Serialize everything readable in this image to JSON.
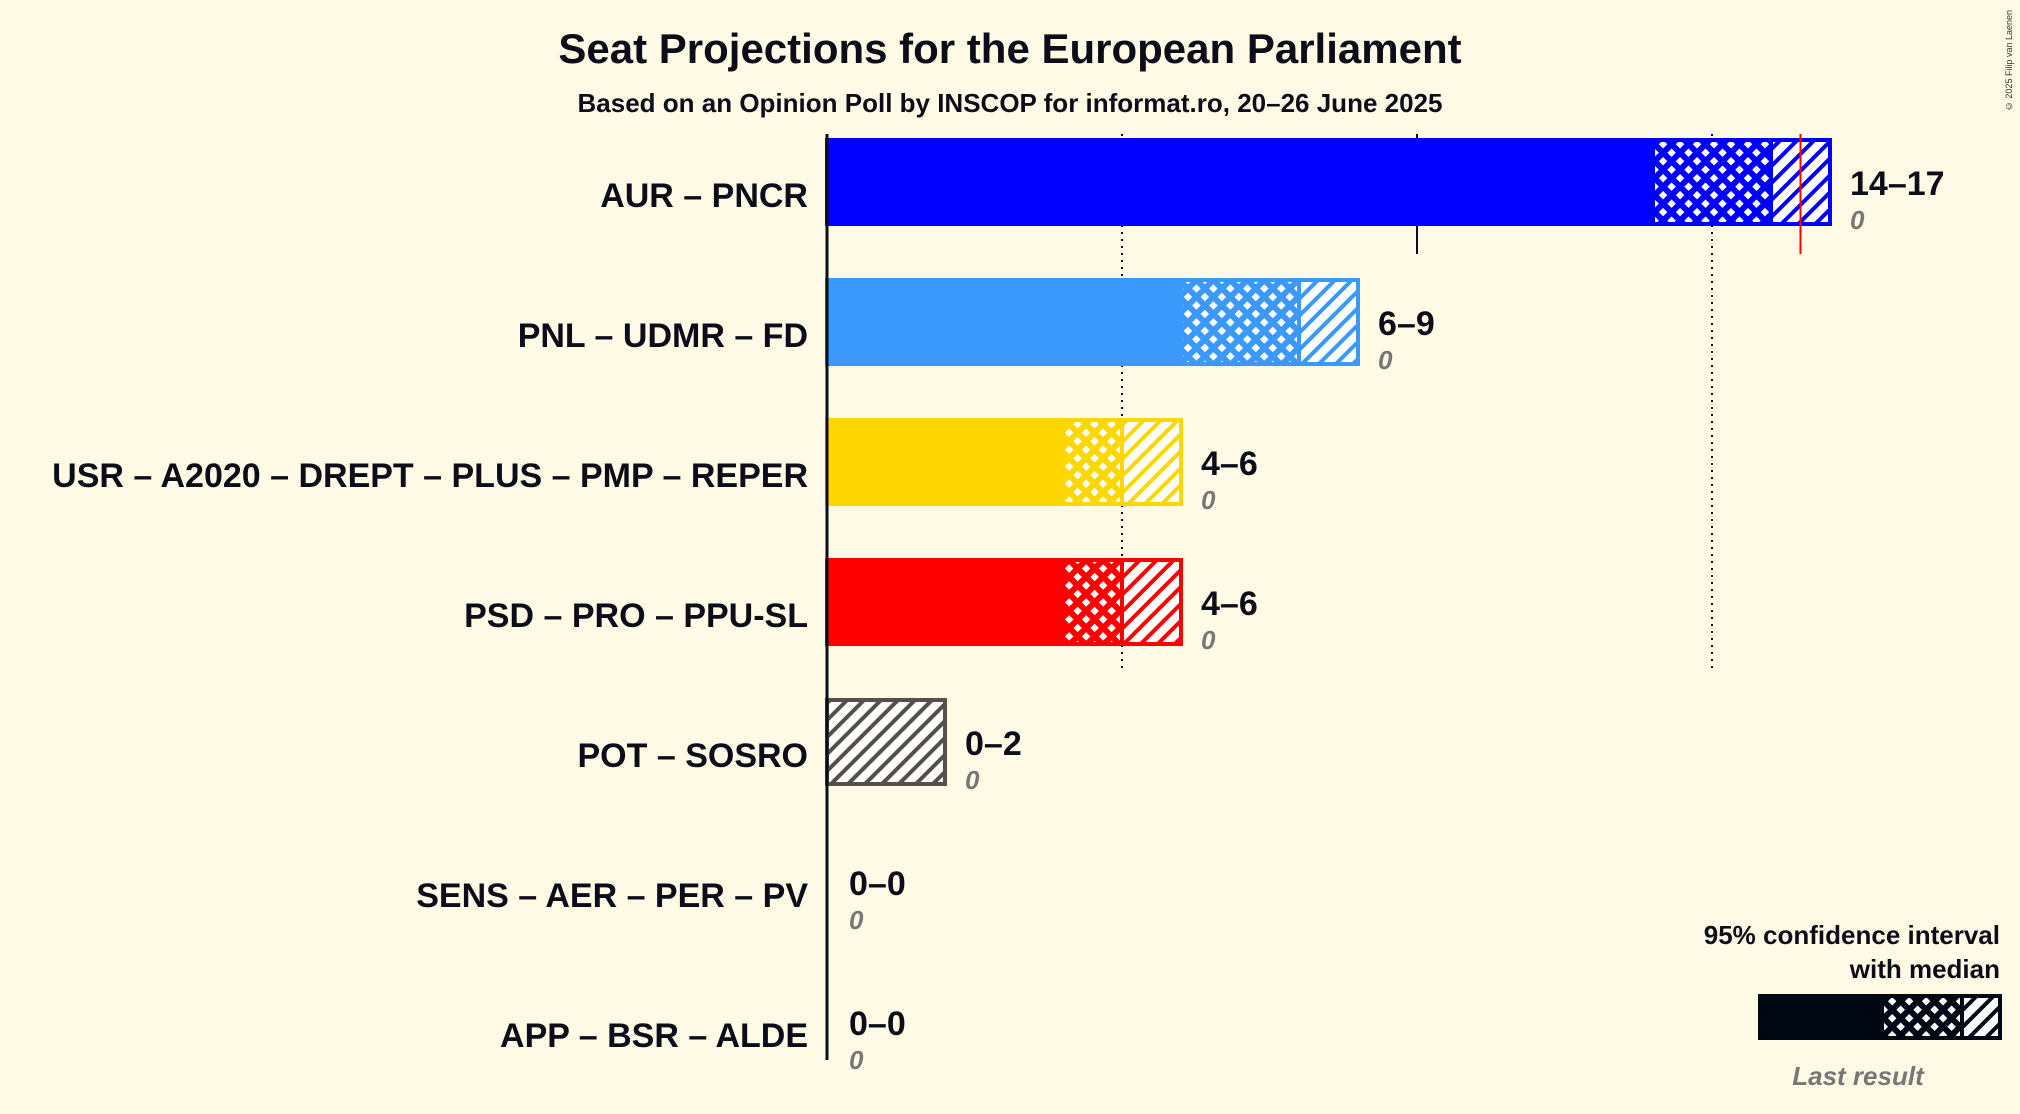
{
  "copyright": "© 2025 Filip van Laenen",
  "colors": {
    "background": "#fffae6",
    "text": "#0d0d1a",
    "last_result_text": "#777777",
    "median_line": "#ff0000",
    "legend_dark": "#000814",
    "legend_last": "#888480"
  },
  "chart_data": {
    "type": "bar",
    "orientation": "horizontal",
    "title": "Seat Projections for the European Parliament",
    "subtitle": "Based on an Opinion Poll by INSCOP for informat.ro, 20–26 June 2025",
    "xlim": [
      0,
      17
    ],
    "gridlines": [
      5,
      10,
      15
    ],
    "majority_line": 16.5,
    "series_meaning": [
      "90% interval lower bound",
      "80% / 95% hatched interval",
      "upper bound"
    ],
    "categories": [
      "AUR – PNCR",
      "PNL – UDMR – FD",
      "USR – A2020 – DREPT – PLUS – PMP – REPER",
      "PSD – PRO – PPU-SL",
      "POT – SOSRO",
      "SENS – AER – PER – PV",
      "APP – BSR – ALDE"
    ],
    "parties": [
      {
        "label": "AUR – PNCR",
        "range": "14–17",
        "last": "0",
        "low": 14,
        "mid": 16,
        "high": 17,
        "color": "#0000ff"
      },
      {
        "label": "PNL – UDMR – FD",
        "range": "6–9",
        "last": "0",
        "low": 6,
        "mid": 8,
        "high": 9,
        "color": "#3b99fc"
      },
      {
        "label": "USR – A2020 – DREPT – PLUS – PMP – REPER",
        "range": "4–6",
        "last": "0",
        "low": 4,
        "mid": 5,
        "high": 6,
        "color": "#ffd700"
      },
      {
        "label": "PSD – PRO – PPU-SL",
        "range": "4–6",
        "last": "0",
        "low": 4,
        "mid": 5,
        "high": 6,
        "color": "#ff0000"
      },
      {
        "label": "POT – SOSRO",
        "range": "0–2",
        "last": "0",
        "low": 0,
        "mid": 0,
        "high": 2,
        "color": "#555049"
      },
      {
        "label": "SENS – AER – PER – PV",
        "range": "0–0",
        "last": "0",
        "low": 0,
        "mid": 0,
        "high": 0,
        "color": "#555049"
      },
      {
        "label": "APP – BSR – ALDE",
        "range": "0–0",
        "last": "0",
        "low": 0,
        "mid": 0,
        "high": 0,
        "color": "#555049"
      }
    ],
    "legend": {
      "line1": "95% confidence interval",
      "line2": "with median",
      "last_result": "Last result"
    }
  }
}
